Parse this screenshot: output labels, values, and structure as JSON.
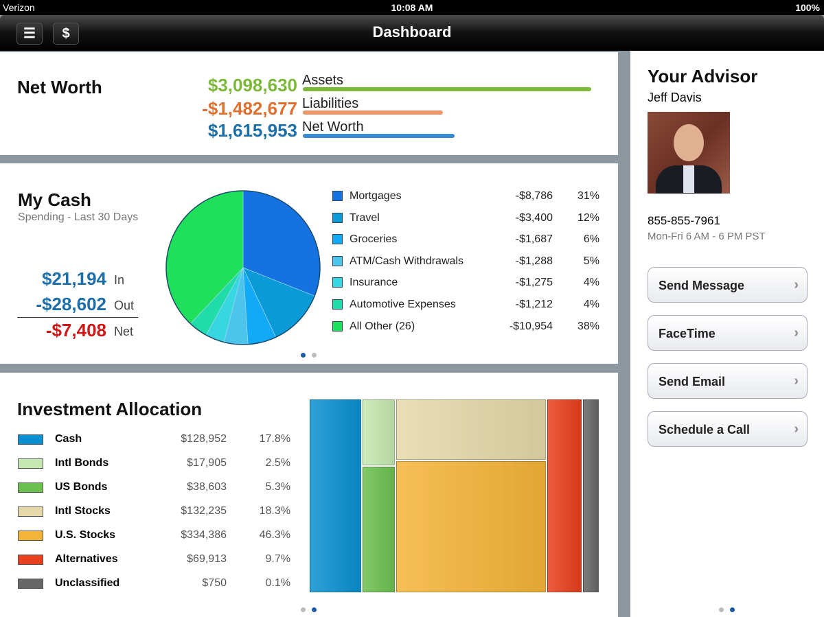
{
  "status": {
    "carrier": "Verizon",
    "time": "10:08 AM",
    "battery": "100%"
  },
  "nav": {
    "title": "Dashboard",
    "list_icon": "list-icon",
    "dollar_label": "$"
  },
  "net_worth": {
    "title": "Net Worth",
    "assets_value": "$3,098,630",
    "assets_label": "Assets",
    "liabilities_value": "-$1,482,677",
    "liabilities_label": "Liabilities",
    "net_value": "$1,615,953",
    "net_label": "Net Worth",
    "colors": {
      "assets": "#7cb83a",
      "liabilities": "#e8843e",
      "net": "#2a7ab0"
    }
  },
  "cash": {
    "title": "My Cash",
    "subtitle": "Spending - Last 30 Days",
    "in_value": "$21,194",
    "in_label": "In",
    "out_value": "-$28,602",
    "out_label": "Out",
    "net_value": "-$7,408",
    "net_label": "Net",
    "items": [
      {
        "label": "Mortgages",
        "amount": "-$8,786",
        "pct": "31%",
        "value": 31,
        "color": "#1473e0"
      },
      {
        "label": "Travel",
        "amount": "-$3,400",
        "pct": "12%",
        "value": 12,
        "color": "#0a9ad8"
      },
      {
        "label": "Groceries",
        "amount": "-$1,687",
        "pct": "6%",
        "value": 6,
        "color": "#12aaf5"
      },
      {
        "label": "ATM/Cash Withdrawals",
        "amount": "-$1,288",
        "pct": "5%",
        "value": 5,
        "color": "#4cc4ec"
      },
      {
        "label": "Insurance",
        "amount": "-$1,275",
        "pct": "4%",
        "value": 4,
        "color": "#38d6e0"
      },
      {
        "label": "Automotive Expenses",
        "amount": "-$1,212",
        "pct": "4%",
        "value": 4,
        "color": "#20dca8"
      },
      {
        "label": "All Other (26)",
        "amount": "-$10,954",
        "pct": "38%",
        "value": 38,
        "color": "#1fe05a"
      }
    ]
  },
  "investment": {
    "title": "Investment Allocation",
    "items": [
      {
        "label": "Cash",
        "amount": "$128,952",
        "pct": "17.8%",
        "color": "#0a90d0"
      },
      {
        "label": "Intl Bonds",
        "amount": "$17,905",
        "pct": "2.5%",
        "color": "#c4e8b0"
      },
      {
        "label": "US Bonds",
        "amount": "$38,603",
        "pct": "5.3%",
        "color": "#6cc050"
      },
      {
        "label": "Intl Stocks",
        "amount": "$132,235",
        "pct": "18.3%",
        "color": "#e6d8a8"
      },
      {
        "label": "U.S. Stocks",
        "amount": "$334,386",
        "pct": "46.3%",
        "color": "#f4b438"
      },
      {
        "label": "Alternatives",
        "amount": "$69,913",
        "pct": "9.7%",
        "color": "#e8401c"
      },
      {
        "label": "Unclassified",
        "amount": "$750",
        "pct": "0.1%",
        "color": "#666666"
      }
    ]
  },
  "advisor": {
    "title": "Your Advisor",
    "name": "Jeff Davis",
    "phone": "855-855-7961",
    "hours": "Mon-Fri 6 AM - 6 PM PST",
    "actions": [
      "Send Message",
      "FaceTime",
      "Send Email",
      "Schedule a Call"
    ]
  }
}
